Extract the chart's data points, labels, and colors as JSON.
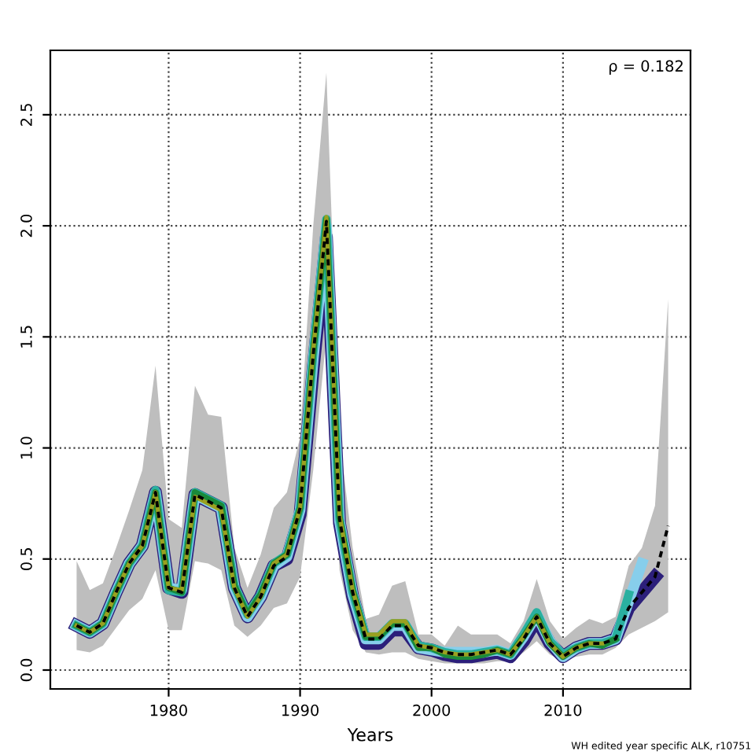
{
  "chart_data": {
    "type": "line",
    "xlabel": "Years",
    "annotations": [
      "ρ = 0.182",
      "WH edited year specific ALK, r10751"
    ],
    "xlim": [
      1971,
      2019.7
    ],
    "ylim": [
      -0.085,
      2.79
    ],
    "xticks": [
      1980,
      1990,
      2000,
      2010
    ],
    "yticks": [
      {
        "value": 0,
        "label": "0.0"
      },
      {
        "value": 0.5,
        "label": "0.5"
      },
      {
        "value": 1,
        "label": "1.0"
      },
      {
        "value": 1.5,
        "label": "1.5"
      },
      {
        "value": 2,
        "label": "2.0"
      },
      {
        "value": 2.5,
        "label": "2.5"
      }
    ],
    "grid": true,
    "legend": false,
    "series": [
      {
        "color": "#000000",
        "line_style": "dashed",
        "x": [
          1973,
          1974,
          1975,
          1976,
          1977,
          1978,
          1979,
          1980,
          1981,
          1982,
          1983,
          1984,
          1985,
          1986,
          1987,
          1988,
          1989,
          1990,
          1991,
          1992,
          1993,
          1994,
          1995,
          1996,
          1997,
          1998,
          1999,
          2000,
          2001,
          2002,
          2003,
          2004,
          2005,
          2006,
          2007,
          2008,
          2009,
          2010,
          2011,
          2012,
          2013,
          2014,
          2015,
          2016,
          2017,
          2018
        ],
        "values": [
          0.2,
          0.17,
          0.21,
          0.35,
          0.48,
          0.56,
          0.8,
          0.37,
          0.35,
          0.79,
          0.76,
          0.73,
          0.37,
          0.24,
          0.33,
          0.47,
          0.51,
          0.73,
          1.42,
          2.02,
          0.68,
          0.35,
          0.14,
          0.14,
          0.2,
          0.2,
          0.11,
          0.1,
          0.08,
          0.07,
          0.07,
          0.08,
          0.09,
          0.07,
          0.14,
          0.24,
          0.12,
          0.06,
          0.1,
          0.12,
          0.12,
          0.14,
          0.28,
          0.35,
          0.42,
          0.65
        ],
        "lower": [
          0.09,
          0.08,
          0.11,
          0.19,
          0.27,
          0.32,
          0.45,
          0.18,
          0.18,
          0.49,
          0.48,
          0.45,
          0.2,
          0.15,
          0.2,
          0.28,
          0.3,
          0.42,
          0.9,
          1.5,
          0.45,
          0.18,
          0.08,
          0.07,
          0.08,
          0.08,
          0.05,
          0.04,
          0.03,
          0.03,
          0.03,
          0.03,
          0.04,
          0.04,
          0.08,
          0.13,
          0.07,
          0.04,
          0.06,
          0.07,
          0.07,
          0.1,
          0.16,
          0.19,
          0.22,
          0.26
        ],
        "upper": [
          0.49,
          0.36,
          0.39,
          0.55,
          0.72,
          0.9,
          1.37,
          0.68,
          0.64,
          1.28,
          1.15,
          1.14,
          0.55,
          0.37,
          0.52,
          0.73,
          0.8,
          1.05,
          2.0,
          2.69,
          1.05,
          0.55,
          0.23,
          0.25,
          0.38,
          0.4,
          0.16,
          0.16,
          0.11,
          0.2,
          0.16,
          0.16,
          0.16,
          0.12,
          0.22,
          0.41,
          0.22,
          0.14,
          0.19,
          0.23,
          0.21,
          0.24,
          0.47,
          0.55,
          0.74,
          1.67
        ]
      },
      {
        "color": "#2c1f7a",
        "x": [
          1973,
          1974,
          1975,
          1976,
          1977,
          1978,
          1979,
          1980,
          1981,
          1982,
          1983,
          1984,
          1985,
          1986,
          1987,
          1988,
          1989,
          1990,
          1991,
          1992,
          1993,
          1994,
          1995,
          1996,
          1997,
          1998,
          1999,
          2000,
          2001,
          2002,
          2003,
          2004,
          2005,
          2006,
          2007,
          2008,
          2009,
          2010,
          2011,
          2012,
          2013,
          2014,
          2015,
          2016,
          2017
        ],
        "values": [
          0.2,
          0.17,
          0.21,
          0.35,
          0.48,
          0.56,
          0.8,
          0.37,
          0.35,
          0.79,
          0.76,
          0.73,
          0.37,
          0.24,
          0.33,
          0.47,
          0.5,
          0.7,
          1.36,
          1.95,
          0.66,
          0.33,
          0.12,
          0.12,
          0.18,
          0.18,
          0.1,
          0.09,
          0.07,
          0.06,
          0.06,
          0.07,
          0.08,
          0.06,
          0.13,
          0.23,
          0.12,
          0.06,
          0.1,
          0.12,
          0.12,
          0.14,
          0.28,
          0.35,
          0.42
        ]
      },
      {
        "color": "#87ceeb",
        "x": [
          1973,
          1974,
          1975,
          1976,
          1977,
          1978,
          1979,
          1980,
          1981,
          1982,
          1983,
          1984,
          1985,
          1986,
          1987,
          1988,
          1989,
          1990,
          1991,
          1992,
          1993,
          1994,
          1995,
          1996,
          1997,
          1998,
          1999,
          2000,
          2001,
          2002,
          2003,
          2004,
          2005,
          2006,
          2007,
          2008,
          2009,
          2010,
          2011,
          2012,
          2013,
          2014,
          2015,
          2016
        ],
        "values": [
          0.2,
          0.17,
          0.21,
          0.35,
          0.48,
          0.56,
          0.8,
          0.37,
          0.36,
          0.79,
          0.76,
          0.73,
          0.37,
          0.24,
          0.33,
          0.47,
          0.51,
          0.72,
          1.4,
          2.0,
          0.67,
          0.34,
          0.14,
          0.14,
          0.2,
          0.2,
          0.1,
          0.09,
          0.08,
          0.08,
          0.08,
          0.08,
          0.09,
          0.07,
          0.15,
          0.25,
          0.13,
          0.06,
          0.1,
          0.12,
          0.12,
          0.14,
          0.31,
          0.48
        ]
      },
      {
        "color": "#2ab0a0",
        "x": [
          1973,
          1974,
          1975,
          1976,
          1977,
          1978,
          1979,
          1980,
          1981,
          1982,
          1983,
          1984,
          1985,
          1986,
          1987,
          1988,
          1989,
          1990,
          1991,
          1992,
          1993,
          1994,
          1995,
          1996,
          1997,
          1998,
          1999,
          2000,
          2001,
          2002,
          2003,
          2004,
          2005,
          2006,
          2007,
          2008,
          2009,
          2010,
          2011,
          2012,
          2013,
          2014,
          2015
        ],
        "values": [
          0.2,
          0.17,
          0.21,
          0.35,
          0.48,
          0.56,
          0.81,
          0.36,
          0.35,
          0.8,
          0.77,
          0.74,
          0.38,
          0.25,
          0.34,
          0.48,
          0.52,
          0.73,
          1.43,
          2.03,
          0.68,
          0.35,
          0.15,
          0.15,
          0.21,
          0.21,
          0.11,
          0.1,
          0.08,
          0.07,
          0.07,
          0.08,
          0.09,
          0.07,
          0.16,
          0.26,
          0.13,
          0.07,
          0.1,
          0.12,
          0.12,
          0.14,
          0.34
        ]
      },
      {
        "color": "#1a8a3a",
        "x": [
          1973,
          1974,
          1975,
          1976,
          1977,
          1978,
          1979,
          1980,
          1981,
          1982,
          1983,
          1984,
          1985,
          1986,
          1987,
          1988,
          1989,
          1990,
          1991,
          1992,
          1993,
          1994,
          1995,
          1996,
          1997,
          1998,
          1999,
          2000,
          2001,
          2002,
          2003,
          2004,
          2005,
          2006,
          2007,
          2008,
          2009,
          2010,
          2011,
          2012,
          2013,
          2014
        ],
        "values": [
          0.2,
          0.17,
          0.21,
          0.35,
          0.48,
          0.56,
          0.8,
          0.37,
          0.35,
          0.8,
          0.77,
          0.74,
          0.38,
          0.25,
          0.34,
          0.48,
          0.52,
          0.73,
          1.43,
          2.03,
          0.69,
          0.36,
          0.15,
          0.15,
          0.21,
          0.21,
          0.1,
          0.1,
          0.07,
          0.06,
          0.06,
          0.07,
          0.09,
          0.07,
          0.15,
          0.24,
          0.12,
          0.06,
          0.1,
          0.12,
          0.11,
          0.14
        ]
      },
      {
        "color": "#9aa020",
        "x": [
          1973,
          1974,
          1975,
          1976,
          1977,
          1978,
          1979,
          1980,
          1981,
          1982,
          1983,
          1984,
          1985,
          1986,
          1987,
          1988,
          1989,
          1990,
          1991,
          1992,
          1993,
          1994,
          1995,
          1996,
          1997,
          1998,
          1999,
          2000,
          2001,
          2002,
          2003,
          2004,
          2005,
          2006,
          2007,
          2008,
          2009,
          2010,
          2011,
          2012,
          2013
        ],
        "values": [
          0.2,
          0.17,
          0.21,
          0.35,
          0.48,
          0.56,
          0.8,
          0.37,
          0.36,
          0.78,
          0.75,
          0.72,
          0.37,
          0.24,
          0.33,
          0.48,
          0.52,
          0.73,
          1.44,
          2.04,
          0.7,
          0.36,
          0.16,
          0.16,
          0.22,
          0.22,
          0.11,
          0.1,
          0.08,
          0.07,
          0.07,
          0.08,
          0.09,
          0.07,
          0.15,
          0.24,
          0.12,
          0.06,
          0.1,
          0.12,
          0.12
        ]
      }
    ]
  }
}
